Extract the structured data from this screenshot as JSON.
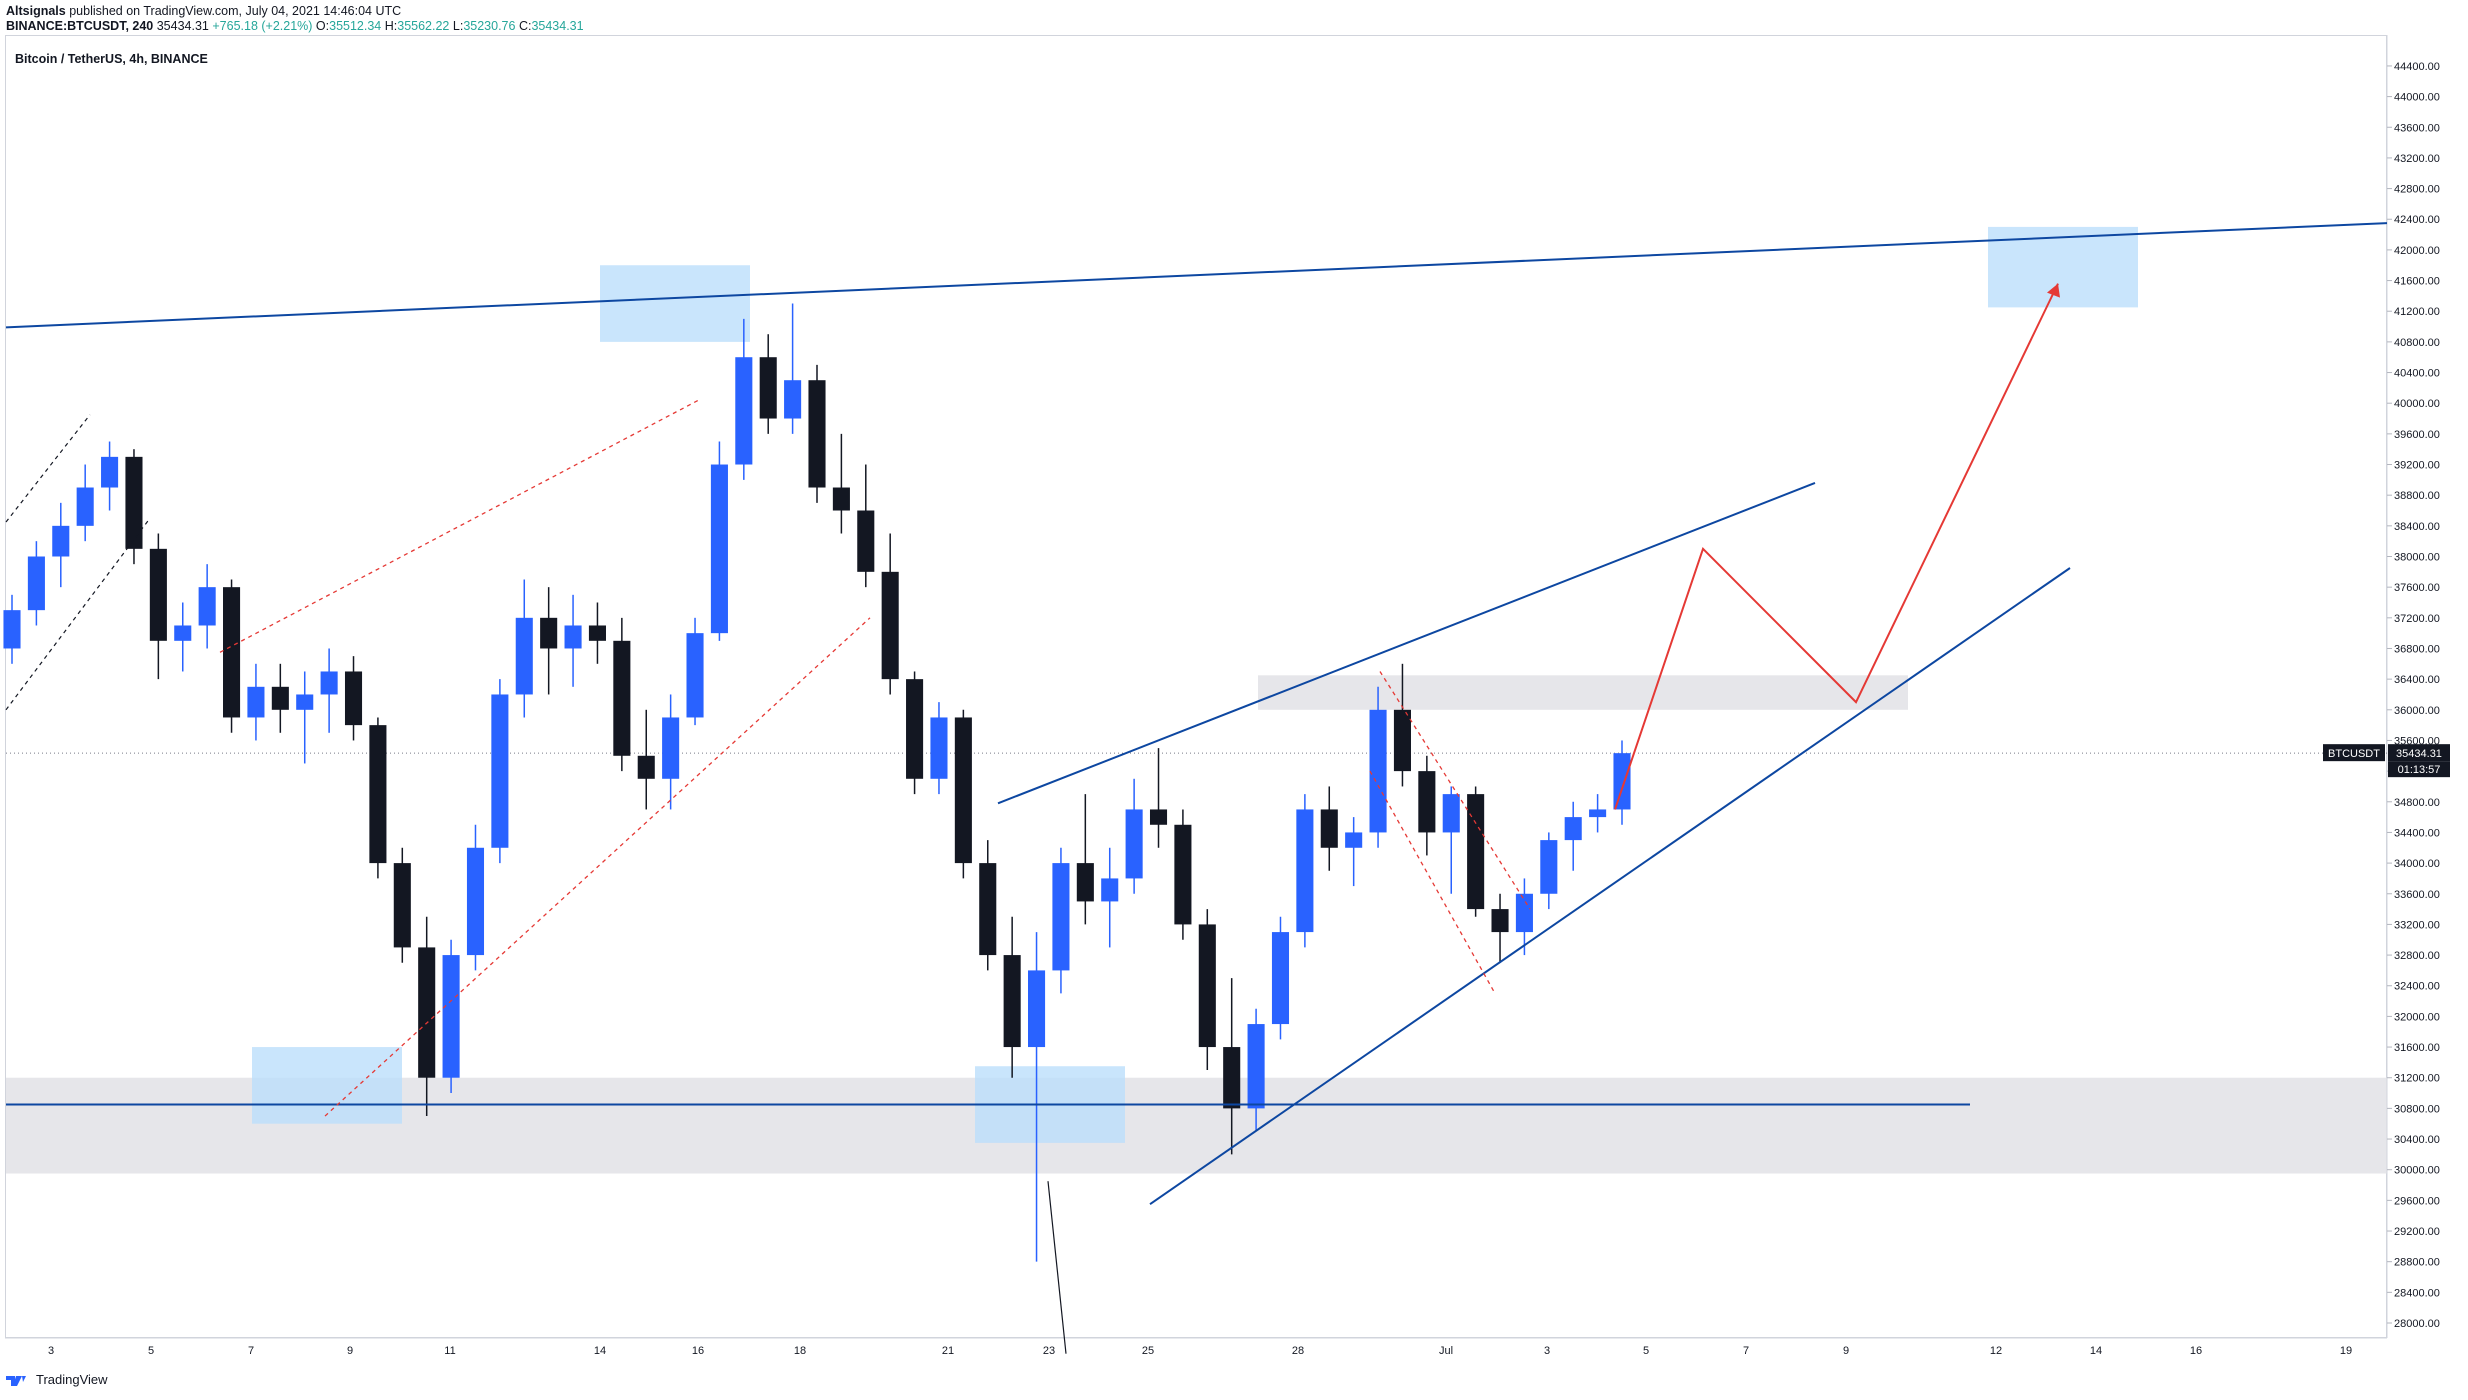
{
  "header": {
    "line1_user": "Altsignals",
    "line1_rest": " published on TradingView.com, July 04, 2021 14:46:04 UTC",
    "line2_symbol": "BINANCE:BTCUSDT, 240",
    "line2_price": "35434.31",
    "line2_change": "+765.18 (+2.21%)",
    "line2_o_label": "O:",
    "line2_o": "35512.34",
    "line2_h_label": "H:",
    "line2_h": "35562.22",
    "line2_l_label": "L:",
    "line2_l": "35230.76",
    "line2_c_label": "C:",
    "line2_c": "35434.31"
  },
  "chart_title": "Bitcoin / TetherUS, 4h, BINANCE",
  "footer": {
    "brand": "TradingView",
    "logo_icon": "tradingview-logo-icon"
  },
  "price_tag": {
    "symbol": "BTCUSDT",
    "price": "35434.31",
    "countdown": "01:13:57"
  },
  "colors": {
    "up": "#2962ff",
    "down": "#131722",
    "blue_line": "#0d47a1",
    "red": "#e53935",
    "zone_blue": "#bbdefb",
    "zone_gray": "#e6e6ea"
  },
  "chart_data": {
    "type": "candlestick",
    "title": "Bitcoin / TetherUS, 4h, BINANCE",
    "ylim": [
      27600,
      44600
    ],
    "y_ticks": [
      "44400.00",
      "44000.00",
      "43600.00",
      "43200.00",
      "42800.00",
      "42400.00",
      "42000.00",
      "41600.00",
      "41200.00",
      "40800.00",
      "40400.00",
      "40000.00",
      "39600.00",
      "39200.00",
      "38800.00",
      "38400.00",
      "38000.00",
      "37600.00",
      "37200.00",
      "36800.00",
      "36400.00",
      "36000.00",
      "35600.00",
      "35200.00",
      "34800.00",
      "34400.00",
      "34000.00",
      "33600.00",
      "33200.00",
      "32800.00",
      "32400.00",
      "32000.00",
      "31600.00",
      "31200.00",
      "30800.00",
      "30400.00",
      "30000.00",
      "29600.00",
      "29200.00",
      "28800.00",
      "28400.00",
      "28000.00"
    ],
    "x_ticks": [
      "3",
      "5",
      "7",
      "9",
      "11",
      "14",
      "16",
      "18",
      "21",
      "23",
      "25",
      "28",
      "Jul",
      "3",
      "5",
      "7",
      "9",
      "12",
      "14",
      "16",
      "19"
    ],
    "last_price": 35434.31,
    "ohlc_approx": [
      [
        36800,
        37500,
        36600,
        37300
      ],
      [
        37300,
        38200,
        37100,
        38000
      ],
      [
        38000,
        38700,
        37600,
        38400
      ],
      [
        38400,
        39200,
        38200,
        38900
      ],
      [
        38900,
        39500,
        38600,
        39300
      ],
      [
        39300,
        39400,
        37900,
        38100
      ],
      [
        38100,
        38300,
        36400,
        36900
      ],
      [
        36900,
        37400,
        36500,
        37100
      ],
      [
        37100,
        37900,
        36800,
        37600
      ],
      [
        37600,
        37700,
        35700,
        35900
      ],
      [
        35900,
        36600,
        35600,
        36300
      ],
      [
        36300,
        36600,
        35700,
        36000
      ],
      [
        36000,
        36500,
        35300,
        36200
      ],
      [
        36200,
        36800,
        35700,
        36500
      ],
      [
        36500,
        36700,
        35600,
        35800
      ],
      [
        35800,
        35900,
        33800,
        34000
      ],
      [
        34000,
        34200,
        32700,
        32900
      ],
      [
        32900,
        33300,
        30700,
        31200
      ],
      [
        31200,
        33000,
        31000,
        32800
      ],
      [
        32800,
        34500,
        32600,
        34200
      ],
      [
        34200,
        36400,
        34000,
        36200
      ],
      [
        36200,
        37700,
        35900,
        37200
      ],
      [
        37200,
        37600,
        36200,
        36800
      ],
      [
        36800,
        37500,
        36300,
        37100
      ],
      [
        37100,
        37400,
        36600,
        36900
      ],
      [
        36900,
        37200,
        35200,
        35400
      ],
      [
        35400,
        36000,
        34700,
        35100
      ],
      [
        35100,
        36200,
        34700,
        35900
      ],
      [
        35900,
        37200,
        35800,
        37000
      ],
      [
        37000,
        39500,
        36900,
        39200
      ],
      [
        39200,
        41100,
        39000,
        40600
      ],
      [
        40600,
        40900,
        39600,
        39800
      ],
      [
        39800,
        41300,
        39600,
        40300
      ],
      [
        40300,
        40500,
        38700,
        38900
      ],
      [
        38900,
        39600,
        38300,
        38600
      ],
      [
        38600,
        39200,
        37600,
        37800
      ],
      [
        37800,
        38300,
        36200,
        36400
      ],
      [
        36400,
        36500,
        34900,
        35100
      ],
      [
        35100,
        36100,
        34900,
        35900
      ],
      [
        35900,
        36000,
        33800,
        34000
      ],
      [
        34000,
        34300,
        32600,
        32800
      ],
      [
        32800,
        33300,
        31200,
        31600
      ],
      [
        31600,
        33100,
        28800,
        32600
      ],
      [
        32600,
        34200,
        32300,
        34000
      ],
      [
        34000,
        34900,
        33200,
        33500
      ],
      [
        33500,
        34200,
        32900,
        33800
      ],
      [
        33800,
        35100,
        33600,
        34700
      ],
      [
        34700,
        35500,
        34200,
        34500
      ],
      [
        34500,
        34700,
        33000,
        33200
      ],
      [
        33200,
        33400,
        31300,
        31600
      ],
      [
        31600,
        32500,
        30200,
        30800
      ],
      [
        30800,
        32100,
        30500,
        31900
      ],
      [
        31900,
        33300,
        31700,
        33100
      ],
      [
        33100,
        34900,
        32900,
        34700
      ],
      [
        34700,
        35000,
        33900,
        34200
      ],
      [
        34200,
        34600,
        33700,
        34400
      ],
      [
        34400,
        36300,
        34200,
        36000
      ],
      [
        36000,
        36600,
        35000,
        35200
      ],
      [
        35200,
        35400,
        34100,
        34400
      ],
      [
        34400,
        35000,
        33600,
        34900
      ],
      [
        34900,
        35000,
        33300,
        33400
      ],
      [
        33400,
        33600,
        32700,
        33100
      ],
      [
        33100,
        33800,
        32800,
        33600
      ],
      [
        33600,
        34400,
        33400,
        34300
      ],
      [
        34300,
        34800,
        33900,
        34600
      ],
      [
        34600,
        34900,
        34400,
        34700
      ],
      [
        34700,
        35600,
        34500,
        35434.31
      ]
    ]
  }
}
